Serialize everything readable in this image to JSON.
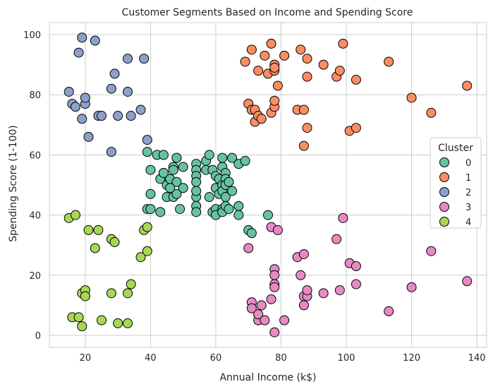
{
  "chart_data": {
    "type": "scatter",
    "title": "Customer Segments Based on Income and Spending Score",
    "xlabel": "Annual Income (k$)",
    "ylabel": "Spending Score (1-100)",
    "xlim": [
      9,
      143
    ],
    "ylim": [
      -4,
      104
    ],
    "xticks": [
      20,
      40,
      60,
      80,
      100,
      120,
      140
    ],
    "yticks": [
      0,
      20,
      40,
      60,
      80,
      100
    ],
    "grid": true,
    "legend": {
      "title": "Cluster",
      "placement": "center-right"
    },
    "series": [
      {
        "name": "0",
        "color": "#66c2a5",
        "points": [
          [
            39,
            61
          ],
          [
            42,
            60
          ],
          [
            43,
            52
          ],
          [
            44,
            60
          ],
          [
            44,
            54
          ],
          [
            45,
            50
          ],
          [
            45,
            46
          ],
          [
            46,
            52
          ],
          [
            47,
            56
          ],
          [
            47,
            55
          ],
          [
            48,
            59
          ],
          [
            48,
            59
          ],
          [
            47,
            46
          ],
          [
            48,
            51
          ],
          [
            48,
            47
          ],
          [
            49,
            42
          ],
          [
            50,
            49
          ],
          [
            50,
            56
          ],
          [
            54,
            57
          ],
          [
            54,
            55
          ],
          [
            54,
            53
          ],
          [
            54,
            51
          ],
          [
            54,
            46
          ],
          [
            54,
            43
          ],
          [
            54,
            41
          ],
          [
            54,
            48
          ],
          [
            57,
            58
          ],
          [
            57,
            55
          ],
          [
            58,
            60
          ],
          [
            58,
            46
          ],
          [
            59,
            55
          ],
          [
            59,
            41
          ],
          [
            60,
            53
          ],
          [
            60,
            49
          ],
          [
            60,
            42
          ],
          [
            60,
            40
          ],
          [
            61,
            52
          ],
          [
            61,
            47
          ],
          [
            62,
            59
          ],
          [
            62,
            56
          ],
          [
            62,
            50
          ],
          [
            62,
            48
          ],
          [
            62,
            42
          ],
          [
            62,
            41
          ],
          [
            63,
            54
          ],
          [
            63,
            52
          ],
          [
            63,
            50
          ],
          [
            63,
            46
          ],
          [
            63,
            43
          ],
          [
            64,
            42
          ],
          [
            64,
            51
          ],
          [
            65,
            59
          ],
          [
            65,
            48
          ],
          [
            67,
            57
          ],
          [
            67,
            43
          ],
          [
            67,
            40
          ],
          [
            69,
            58
          ],
          [
            70,
            35
          ],
          [
            71,
            34
          ],
          [
            76,
            40
          ],
          [
            39,
            42
          ],
          [
            40,
            55
          ],
          [
            40,
            47
          ],
          [
            40,
            42
          ],
          [
            43,
            41
          ],
          [
            44,
            54
          ],
          [
            46,
            49
          ]
        ]
      },
      {
        "name": "1",
        "color": "#fc8d62",
        "points": [
          [
            69,
            91
          ],
          [
            70,
            77
          ],
          [
            71,
            95
          ],
          [
            71,
            75
          ],
          [
            72,
            75
          ],
          [
            72,
            71
          ],
          [
            73,
            88
          ],
          [
            73,
            73
          ],
          [
            74,
            72
          ],
          [
            75,
            93
          ],
          [
            76,
            87
          ],
          [
            77,
            97
          ],
          [
            77,
            74
          ],
          [
            78,
            90
          ],
          [
            78,
            88
          ],
          [
            78,
            89
          ],
          [
            78,
            76
          ],
          [
            78,
            78
          ],
          [
            79,
            83
          ],
          [
            81,
            93
          ],
          [
            85,
            75
          ],
          [
            86,
            95
          ],
          [
            87,
            63
          ],
          [
            87,
            75
          ],
          [
            88,
            92
          ],
          [
            88,
            86
          ],
          [
            88,
            69
          ],
          [
            93,
            90
          ],
          [
            97,
            86
          ],
          [
            98,
            88
          ],
          [
            99,
            97
          ],
          [
            101,
            68
          ],
          [
            103,
            85
          ],
          [
            103,
            69
          ],
          [
            113,
            91
          ],
          [
            120,
            79
          ],
          [
            126,
            74
          ],
          [
            137,
            83
          ]
        ]
      },
      {
        "name": "2",
        "color": "#8da0cb",
        "points": [
          [
            15,
            81
          ],
          [
            16,
            77
          ],
          [
            17,
            76
          ],
          [
            18,
            94
          ],
          [
            19,
            72
          ],
          [
            19,
            99
          ],
          [
            20,
            77
          ],
          [
            20,
            79
          ],
          [
            21,
            66
          ],
          [
            23,
            98
          ],
          [
            24,
            73
          ],
          [
            25,
            73
          ],
          [
            28,
            82
          ],
          [
            28,
            61
          ],
          [
            29,
            87
          ],
          [
            30,
            73
          ],
          [
            33,
            92
          ],
          [
            33,
            81
          ],
          [
            34,
            73
          ],
          [
            37,
            75
          ],
          [
            38,
            92
          ],
          [
            39,
            65
          ]
        ]
      },
      {
        "name": "3",
        "color": "#e78ac3",
        "points": [
          [
            70,
            29
          ],
          [
            71,
            11
          ],
          [
            71,
            9
          ],
          [
            73,
            5
          ],
          [
            73,
            7
          ],
          [
            74,
            10
          ],
          [
            75,
            5
          ],
          [
            77,
            36
          ],
          [
            77,
            12
          ],
          [
            78,
            22
          ],
          [
            78,
            20
          ],
          [
            78,
            17
          ],
          [
            78,
            16
          ],
          [
            78,
            1
          ],
          [
            79,
            35
          ],
          [
            81,
            5
          ],
          [
            85,
            26
          ],
          [
            86,
            20
          ],
          [
            87,
            27
          ],
          [
            87,
            13
          ],
          [
            87,
            10
          ],
          [
            88,
            13
          ],
          [
            88,
            15
          ],
          [
            93,
            14
          ],
          [
            97,
            32
          ],
          [
            98,
            15
          ],
          [
            99,
            39
          ],
          [
            101,
            24
          ],
          [
            103,
            23
          ],
          [
            103,
            17
          ],
          [
            113,
            8
          ],
          [
            120,
            16
          ],
          [
            126,
            28
          ],
          [
            137,
            18
          ]
        ]
      },
      {
        "name": "4",
        "color": "#a6d854",
        "points": [
          [
            15,
            39
          ],
          [
            16,
            6
          ],
          [
            17,
            40
          ],
          [
            18,
            6
          ],
          [
            19,
            3
          ],
          [
            19,
            14
          ],
          [
            20,
            15
          ],
          [
            20,
            13
          ],
          [
            21,
            35
          ],
          [
            23,
            29
          ],
          [
            24,
            35
          ],
          [
            25,
            5
          ],
          [
            28,
            14
          ],
          [
            28,
            32
          ],
          [
            29,
            31
          ],
          [
            30,
            4
          ],
          [
            33,
            4
          ],
          [
            33,
            14
          ],
          [
            34,
            17
          ],
          [
            37,
            26
          ],
          [
            38,
            35
          ],
          [
            39,
            36
          ],
          [
            39,
            28
          ]
        ]
      }
    ]
  }
}
